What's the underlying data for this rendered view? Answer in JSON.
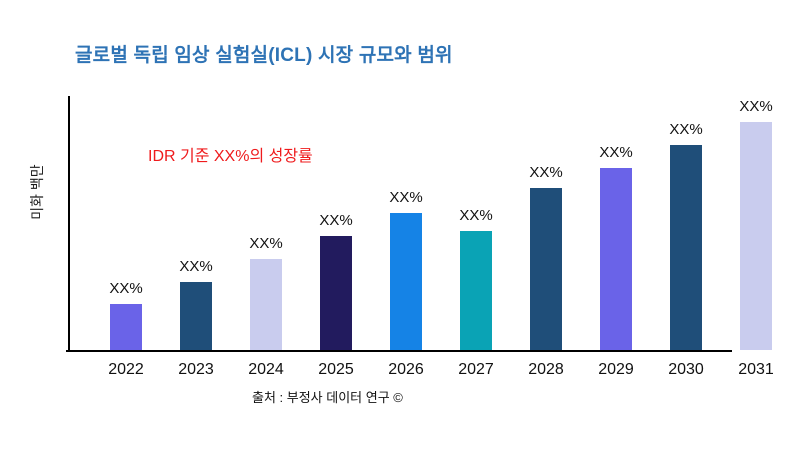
{
  "title": {
    "text": "글로벌 독립 임상 실험실(ICL) 시장 규모와 범위",
    "color": "#2E73B5"
  },
  "annotation": {
    "text": "IDR 기준 XX%의 성장률",
    "color": "#EF1B1D"
  },
  "source": {
    "text": "출처 : 부정사 데이터 연구 ©"
  },
  "chart_data": {
    "type": "bar",
    "title": "글로벌 독립 임상 실험실(ICL) 시장 규모와 범위",
    "xlabel": "",
    "ylabel": "미화 백만",
    "categories": [
      "2022",
      "2023",
      "2024",
      "2025",
      "2026",
      "2027",
      "2028",
      "2029",
      "2030",
      "2031"
    ],
    "values": [
      20,
      30,
      40,
      50,
      60,
      52,
      71,
      80,
      90,
      100
    ],
    "values_note": "relative heights, percent of tallest bar; actual figures masked as XX% in source image",
    "bar_labels": [
      "XX%",
      "XX%",
      "XX%",
      "XX%",
      "XX%",
      "XX%",
      "XX%",
      "XX%",
      "XX%",
      "XX%"
    ],
    "bar_colors": [
      "#6A63E8",
      "#1F4E79",
      "#C9CCEE",
      "#221B5E",
      "#1583E6",
      "#0AA3B5",
      "#1F4E79",
      "#6A63E8",
      "#1F4E79",
      "#C9CCEE"
    ],
    "ylim": [
      0,
      111
    ],
    "grid": false,
    "legend": false,
    "annotation": "IDR 기준 XX%의 성장률",
    "axis_color": "#000000"
  }
}
